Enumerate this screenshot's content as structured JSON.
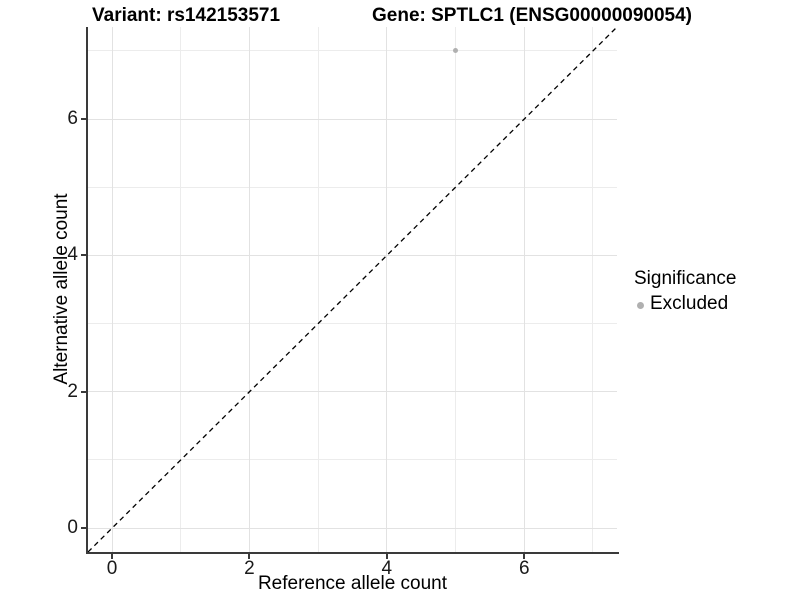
{
  "header": {
    "left_title": "Variant: rs142153571",
    "right_title": "Gene: SPTLC1 (ENSG00000090054)"
  },
  "chart_data": {
    "type": "scatter",
    "title_left": "Variant: rs142153571",
    "title_right": "Gene: SPTLC1 (ENSG00000090054)",
    "xlabel": "Reference allele count",
    "ylabel": "Alternative allele count",
    "xlim": [
      -0.35,
      7.35
    ],
    "ylim": [
      -0.35,
      7.35
    ],
    "x_major_ticks": [
      0,
      2,
      4,
      6
    ],
    "y_major_ticks": [
      0,
      2,
      4,
      6
    ],
    "x_minor_gridlines": [
      1,
      3,
      5,
      7
    ],
    "y_minor_gridlines": [
      1,
      3,
      5,
      7
    ],
    "grid": true,
    "reference_line": {
      "slope": 1,
      "intercept": 0,
      "style": "dashed",
      "color": "#000000"
    },
    "series": [
      {
        "name": "Excluded",
        "color": "#b0b0b0",
        "points": [
          {
            "x": 5,
            "y": 7
          }
        ]
      }
    ],
    "legend": {
      "position": "right",
      "title": "Significance",
      "entries": [
        {
          "label": "Excluded",
          "color": "#b0b0b0"
        }
      ]
    }
  },
  "colors": {
    "grid_major": "#e2e2e2",
    "grid_minor": "#ececec",
    "axis_line": "#3a3a3a",
    "point": "#b0b0b0",
    "reference_line": "#000000"
  }
}
